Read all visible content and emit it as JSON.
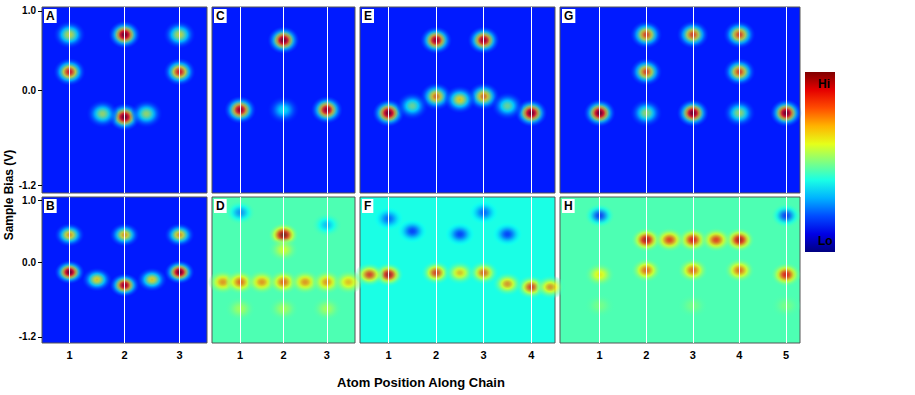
{
  "xlabel": "Atom Position Along Chain",
  "ylabel": "Sample Bias (V)",
  "colorbar": {
    "high": "Hi",
    "low": "Lo",
    "clim": [
      0,
      1
    ]
  },
  "chart_data": [
    {
      "type": "heatmap",
      "title": "A",
      "tick_labels": "y",
      "grid": true,
      "xlim": [
        0.5,
        3.5
      ],
      "xticks": [
        1,
        2,
        3
      ],
      "ylim": [
        -1.3,
        1.05
      ],
      "yticks": [
        -1.2,
        {
          "value": 0,
          "label": "0.0"
        },
        {
          "value": 1,
          "label": "1.0"
        }
      ],
      "background": 0.15,
      "spots": [
        [
          1,
          0.7,
          0.6
        ],
        [
          2,
          0.7,
          1.0
        ],
        [
          3,
          0.7,
          0.6
        ],
        [
          1,
          0.23,
          0.85
        ],
        [
          3,
          0.23,
          0.85
        ],
        [
          2,
          -0.34,
          1.0
        ],
        [
          1.6,
          -0.3,
          0.55
        ],
        [
          2.4,
          -0.3,
          0.55
        ]
      ]
    },
    {
      "type": "heatmap",
      "title": "B",
      "tick_labels": true,
      "grid": true,
      "xlim": [
        0.5,
        3.5
      ],
      "xticks": [
        1,
        2,
        3
      ],
      "ylim": [
        -1.3,
        1.05
      ],
      "yticks": [
        -1.2,
        {
          "value": 0,
          "label": "0.0"
        },
        {
          "value": 1,
          "label": "1.0"
        }
      ],
      "background": 0.15,
      "spots": [
        [
          1,
          0.44,
          0.7
        ],
        [
          2,
          0.44,
          0.7
        ],
        [
          3,
          0.44,
          0.7
        ],
        [
          1,
          -0.16,
          1.0
        ],
        [
          3,
          -0.16,
          1.0
        ],
        [
          2,
          -0.37,
          0.95
        ],
        [
          1.5,
          -0.28,
          0.65
        ],
        [
          2.5,
          -0.28,
          0.65
        ]
      ]
    },
    {
      "type": "heatmap",
      "title": "C",
      "tick_labels": false,
      "grid": true,
      "xlim": [
        0.35,
        3.65
      ],
      "xticks": [
        1,
        2,
        3
      ],
      "ylim": [
        -1.3,
        1.05
      ],
      "yticks": [
        -1.2,
        {
          "value": 0,
          "label": "0.0"
        },
        {
          "value": 1,
          "label": "1.0"
        }
      ],
      "background": 0.15,
      "spots": [
        [
          2,
          0.63,
          1.0
        ],
        [
          1,
          -0.25,
          0.95
        ],
        [
          3,
          -0.25,
          0.95
        ],
        [
          2,
          -0.25,
          0.4
        ]
      ]
    },
    {
      "type": "heatmap",
      "title": "D",
      "tick_labels": "x",
      "grid": true,
      "xlim": [
        0.35,
        3.65
      ],
      "xticks": [
        1,
        2,
        3
      ],
      "ylim": [
        -1.3,
        1.05
      ],
      "yticks": [
        -1.2,
        {
          "value": 0,
          "label": "0.0"
        },
        {
          "value": 1,
          "label": "1.0"
        }
      ],
      "background": 0.45,
      "spots": [
        [
          2,
          0.44,
          1.0
        ],
        [
          2,
          0.2,
          0.6
        ],
        [
          0.6,
          -0.32,
          0.75
        ],
        [
          1,
          -0.32,
          0.8
        ],
        [
          1.5,
          -0.32,
          0.75
        ],
        [
          2,
          -0.32,
          0.8
        ],
        [
          2.5,
          -0.32,
          0.75
        ],
        [
          3,
          -0.32,
          0.75
        ],
        [
          3.5,
          -0.32,
          0.7
        ],
        [
          1,
          -0.75,
          0.55
        ],
        [
          2,
          -0.75,
          0.55
        ],
        [
          3,
          -0.75,
          0.55
        ],
        [
          1,
          0.8,
          0.25
        ],
        [
          3,
          0.6,
          0.3
        ]
      ]
    },
    {
      "type": "heatmap",
      "title": "E",
      "tick_labels": false,
      "grid": true,
      "xlim": [
        0.4,
        4.5
      ],
      "xticks": [
        1,
        2,
        3,
        4
      ],
      "ylim": [
        -1.3,
        1.05
      ],
      "yticks": [
        -1.2,
        {
          "value": 0,
          "label": "0.0"
        },
        {
          "value": 1,
          "label": "1.0"
        }
      ],
      "background": 0.15,
      "spots": [
        [
          2,
          0.63,
          0.95
        ],
        [
          3,
          0.63,
          0.95
        ],
        [
          1,
          -0.29,
          1.0
        ],
        [
          4,
          -0.29,
          1.0
        ],
        [
          2,
          -0.08,
          0.75
        ],
        [
          3,
          -0.08,
          0.75
        ],
        [
          2.5,
          -0.12,
          0.65
        ],
        [
          1.5,
          -0.2,
          0.5
        ],
        [
          3.5,
          -0.2,
          0.5
        ]
      ]
    },
    {
      "type": "heatmap",
      "title": "F",
      "tick_labels": "x",
      "grid": true,
      "xlim": [
        0.4,
        4.5
      ],
      "xticks": [
        1,
        2,
        3,
        4
      ],
      "ylim": [
        -1.3,
        1.05
      ],
      "yticks": [
        -1.2,
        {
          "value": 0,
          "label": "0.0"
        },
        {
          "value": 1,
          "label": "1.0"
        }
      ],
      "background": 0.4,
      "spots": [
        [
          1,
          -0.2,
          0.95
        ],
        [
          0.6,
          -0.2,
          0.85
        ],
        [
          2,
          -0.17,
          0.85
        ],
        [
          2.5,
          -0.17,
          0.7
        ],
        [
          3,
          -0.17,
          0.8
        ],
        [
          4,
          -0.4,
          0.85
        ],
        [
          3.5,
          -0.35,
          0.75
        ],
        [
          4.4,
          -0.4,
          0.75
        ],
        [
          1.5,
          0.5,
          0.15
        ],
        [
          2.5,
          0.45,
          0.15
        ],
        [
          3.5,
          0.45,
          0.15
        ],
        [
          1,
          0.7,
          0.2
        ],
        [
          3,
          0.8,
          0.2
        ]
      ]
    },
    {
      "type": "heatmap",
      "title": "G",
      "tick_labels": false,
      "grid": true,
      "xlim": [
        0.15,
        5.3
      ],
      "xticks": [
        1,
        2,
        3,
        4,
        5
      ],
      "ylim": [
        -1.3,
        1.05
      ],
      "yticks": [
        -1.2,
        {
          "value": 0,
          "label": "0.0"
        },
        {
          "value": 1,
          "label": "1.0"
        }
      ],
      "background": 0.15,
      "spots": [
        [
          2,
          0.7,
          0.8
        ],
        [
          3,
          0.7,
          0.8
        ],
        [
          4,
          0.7,
          0.8
        ],
        [
          2,
          0.23,
          0.8
        ],
        [
          4,
          0.23,
          0.8
        ],
        [
          1,
          -0.29,
          1.0
        ],
        [
          3,
          -0.29,
          1.0
        ],
        [
          5,
          -0.29,
          1.0
        ],
        [
          2,
          -0.29,
          0.55
        ],
        [
          4,
          -0.29,
          0.55
        ]
      ]
    },
    {
      "type": "heatmap",
      "title": "H",
      "tick_labels": "x",
      "grid": true,
      "xlim": [
        0.15,
        5.3
      ],
      "xticks": [
        1,
        2,
        3,
        4,
        5
      ],
      "ylim": [
        -1.3,
        1.05
      ],
      "yticks": [
        -1.2,
        {
          "value": 0,
          "label": "0.0"
        },
        {
          "value": 1,
          "label": "1.0"
        }
      ],
      "background": 0.45,
      "spots": [
        [
          2,
          0.36,
          0.95
        ],
        [
          3,
          0.36,
          0.9
        ],
        [
          4,
          0.36,
          0.95
        ],
        [
          2.5,
          0.36,
          0.85
        ],
        [
          3.5,
          0.36,
          0.85
        ],
        [
          2,
          -0.13,
          0.8
        ],
        [
          3,
          -0.13,
          0.8
        ],
        [
          4,
          -0.13,
          0.8
        ],
        [
          5,
          -0.2,
          0.9
        ],
        [
          1,
          -0.2,
          0.65
        ],
        [
          1,
          0.75,
          0.15
        ],
        [
          5,
          0.75,
          0.15
        ],
        [
          1,
          -0.7,
          0.5
        ],
        [
          3,
          -0.7,
          0.5
        ],
        [
          5,
          -0.7,
          0.5
        ]
      ]
    }
  ]
}
